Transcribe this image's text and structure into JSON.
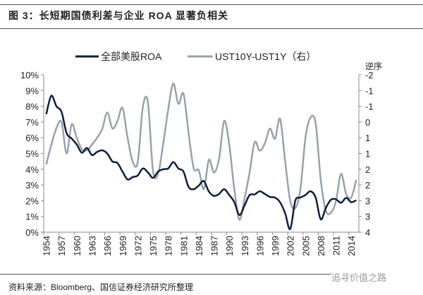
{
  "figure_title": "图 3：长短期国债利差与企业 ROA 显著负相关",
  "source": "资料来源：Bloomberg、国信证券经济研究所整理",
  "watermark": "追寻价值之路",
  "chart_data": {
    "type": "line",
    "title": "长短期国债利差与企业 ROA 显著负相关",
    "x": [
      1954,
      1955,
      1956,
      1957,
      1958,
      1959,
      1960,
      1961,
      1962,
      1963,
      1964,
      1965,
      1966,
      1967,
      1968,
      1969,
      1970,
      1971,
      1972,
      1973,
      1974,
      1975,
      1976,
      1977,
      1978,
      1979,
      1980,
      1981,
      1982,
      1983,
      1984,
      1985,
      1986,
      1987,
      1988,
      1989,
      1990,
      1991,
      1992,
      1993,
      1994,
      1995,
      1996,
      1997,
      1998,
      1999,
      2000,
      2001,
      2002,
      2003,
      2004,
      2005,
      2006,
      2007,
      2008,
      2009,
      2010,
      2011,
      2012,
      2013,
      2014,
      2015
    ],
    "xtick_labels": [
      "1954",
      "1957",
      "1960",
      "1963",
      "1966",
      "1969",
      "1972",
      "1975",
      "1978",
      "1981",
      "1984",
      "1987",
      "1990",
      "1993",
      "1996",
      "1999",
      "2002",
      "2005",
      "2008",
      "2011",
      "2014"
    ],
    "series": [
      {
        "name": "全部美股ROA",
        "axis": "left",
        "color": "#0d1f3c",
        "values": [
          7.5,
          8.67,
          8.0,
          7.65,
          6.3,
          5.95,
          5.57,
          5.05,
          5.35,
          4.9,
          5.1,
          5.2,
          5.0,
          4.5,
          4.4,
          3.85,
          3.35,
          3.5,
          3.6,
          4.05,
          3.8,
          3.45,
          3.85,
          4.0,
          4.05,
          4.45,
          4.05,
          3.85,
          2.88,
          2.73,
          2.96,
          3.25,
          2.58,
          2.31,
          2.43,
          2.73,
          2.36,
          1.91,
          1.09,
          1.69,
          2.36,
          2.4,
          2.6,
          2.43,
          2.24,
          2.2,
          1.9,
          1.2,
          0.2,
          2.0,
          2.2,
          2.36,
          2.6,
          2.2,
          0.82,
          1.54,
          2.06,
          2.09,
          1.87,
          2.18,
          1.91,
          2.03
        ]
      },
      {
        "name": "UST10Y-UST1Y（右）",
        "axis": "right",
        "color": "#98a2ab",
        "values": [
          1.42,
          0.66,
          0.04,
          -0.2,
          1.0,
          -0.11,
          0.4,
          0.84,
          0.88,
          0.66,
          0.4,
          0.07,
          -0.56,
          0.04,
          -0.23,
          -0.74,
          0.4,
          1.3,
          1.33,
          -0.77,
          -0.95,
          1.66,
          1.78,
          0.64,
          -0.68,
          -1.67,
          -0.89,
          -1.28,
          0.22,
          1.56,
          1.64,
          2.36,
          1.24,
          1.73,
          1.2,
          -0.24,
          0.66,
          2.36,
          3.52,
          2.72,
          1.73,
          0.57,
          0.89,
          0.62,
          0.05,
          0.44,
          -0.32,
          1.29,
          2.81,
          3.08,
          2.36,
          0.39,
          -0.37,
          -0.15,
          2.0,
          3.17,
          3.26,
          2.81,
          1.78,
          2.54,
          2.68,
          2.0
        ]
      }
    ],
    "left_axis": {
      "ylim": [
        0,
        10
      ],
      "unit": "%",
      "tick_labels": [
        "0%",
        "1%",
        "2%",
        "3%",
        "4%",
        "5%",
        "6%",
        "7%",
        "8%",
        "9%",
        "10%"
      ]
    },
    "right_axis": {
      "ylim": [
        -2,
        4
      ],
      "reversed": true,
      "label": "逆序",
      "tick_labels": [
        "-2",
        "-1",
        "-1",
        "0",
        "1",
        "1",
        "2",
        "2",
        "3",
        "3",
        "4"
      ]
    },
    "legend": "top-center",
    "grid": false
  }
}
